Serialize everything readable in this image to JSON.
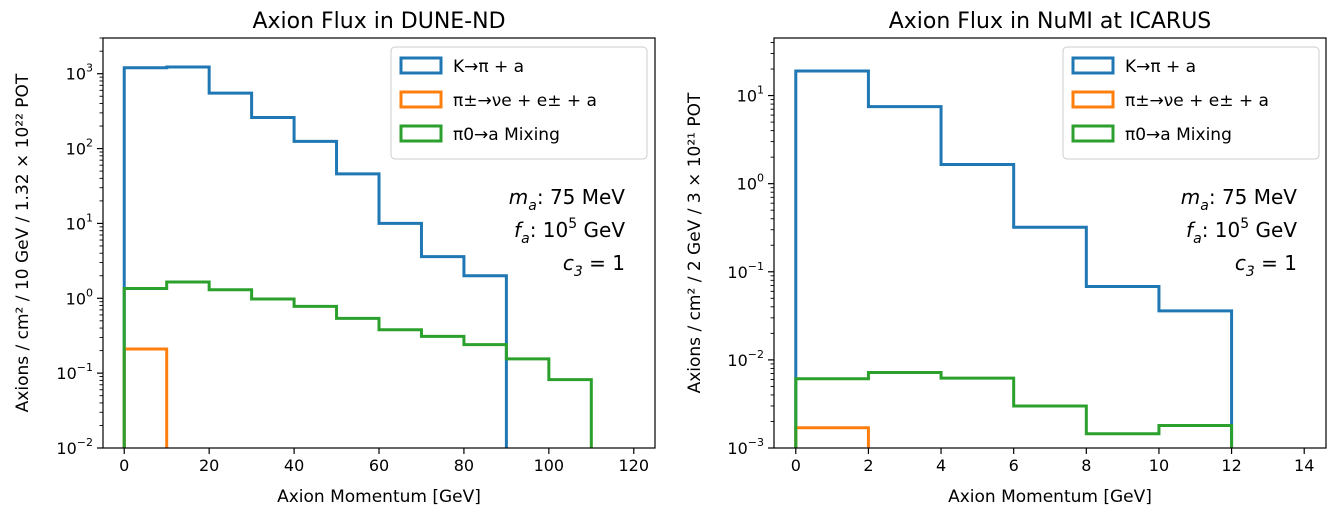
{
  "chart_data": [
    {
      "type": "histogram",
      "title": "Axion Flux in DUNE-ND",
      "xlabel": "Axion Momentum [GeV]",
      "ylabel": "Axions / cm² / 10 GeV / 1.32 × 10²² POT",
      "yscale": "log",
      "xlim": [
        -5,
        125
      ],
      "ylim": [
        0.01,
        3000
      ],
      "x_ticks": [
        0,
        20,
        40,
        60,
        80,
        100,
        120
      ],
      "y_ticks": [
        0.01,
        0.1,
        1,
        10,
        100,
        1000
      ],
      "y_tick_labels": [
        {
          "base": "10",
          "exp": "−2"
        },
        {
          "base": "10",
          "exp": "−1"
        },
        {
          "base": "10",
          "exp": "0"
        },
        {
          "base": "10",
          "exp": "1"
        },
        {
          "base": "10",
          "exp": "2"
        },
        {
          "base": "10",
          "exp": "3"
        }
      ],
      "legend_position": "top-right",
      "annotations": [
        {
          "symbol": "m",
          "sub": "a",
          "text": ": 75 MeV"
        },
        {
          "symbol": "f",
          "sub": "a",
          "text": ": 10",
          "sup": "5",
          "tail": " GeV"
        },
        {
          "symbol": "c",
          "sub": "3",
          "text": " = 1"
        }
      ],
      "series": [
        {
          "name": "K→π + a",
          "color": "#1f77b4",
          "bin_edges": [
            0,
            10,
            20,
            30,
            40,
            50,
            60,
            70,
            80,
            90
          ],
          "values": [
            1200,
            1230,
            550,
            260,
            125,
            46,
            10,
            3.6,
            2.0
          ]
        },
        {
          "name": "π±→νe + e± + a",
          "color": "#ff7f0e",
          "bin_edges": [
            0,
            10
          ],
          "values": [
            0.21
          ]
        },
        {
          "name": "π0→a Mixing",
          "color": "#2ca02c",
          "bin_edges": [
            0,
            10,
            20,
            30,
            40,
            50,
            60,
            70,
            80,
            90,
            100,
            110
          ],
          "values": [
            1.35,
            1.65,
            1.3,
            0.98,
            0.78,
            0.54,
            0.38,
            0.31,
            0.24,
            0.155,
            0.082
          ]
        }
      ]
    },
    {
      "type": "histogram",
      "title": "Axion Flux in NuMI at ICARUS",
      "xlabel": "Axion Momentum [GeV]",
      "ylabel": "Axions / cm² / 2 GeV / 3 × 10²¹ POT",
      "yscale": "log",
      "xlim": [
        -0.6,
        14.6
      ],
      "ylim": [
        0.001,
        45
      ],
      "x_ticks": [
        0,
        2,
        4,
        6,
        8,
        10,
        12,
        14
      ],
      "y_ticks": [
        0.001,
        0.01,
        0.1,
        1,
        10
      ],
      "y_tick_labels": [
        {
          "base": "10",
          "exp": "−3"
        },
        {
          "base": "10",
          "exp": "−2"
        },
        {
          "base": "10",
          "exp": "−1"
        },
        {
          "base": "10",
          "exp": "0"
        },
        {
          "base": "10",
          "exp": "1"
        }
      ],
      "legend_position": "top-right",
      "annotations": [
        {
          "symbol": "m",
          "sub": "a",
          "text": ": 75 MeV"
        },
        {
          "symbol": "f",
          "sub": "a",
          "text": ": 10",
          "sup": "5",
          "tail": " GeV"
        },
        {
          "symbol": "c",
          "sub": "3",
          "text": " = 1"
        }
      ],
      "series": [
        {
          "name": "K→π + a",
          "color": "#1f77b4",
          "bin_edges": [
            0,
            2,
            4,
            6,
            8,
            10,
            12
          ],
          "values": [
            19,
            7.5,
            1.65,
            0.32,
            0.068,
            0.036
          ]
        },
        {
          "name": "π±→νe + e± + a",
          "color": "#ff7f0e",
          "bin_edges": [
            0,
            2
          ],
          "values": [
            0.0017
          ]
        },
        {
          "name": "π0→a Mixing",
          "color": "#2ca02c",
          "bin_edges": [
            0,
            2,
            4,
            6,
            8,
            10,
            12
          ],
          "values": [
            0.0061,
            0.0072,
            0.0062,
            0.003,
            0.00145,
            0.0018
          ]
        }
      ]
    }
  ]
}
